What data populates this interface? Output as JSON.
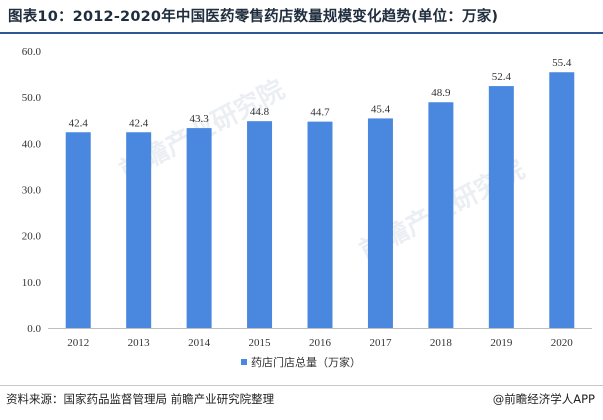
{
  "title": "图表10：2012-2020年中国医药零售药店数量规模变化趋势(单位：万家)",
  "watermark": "前瞻产业研究院",
  "source": "资料来源：国家药品监督管理局 前瞻产业研究院整理",
  "credit": "@前瞻经济学人APP",
  "chart_data": {
    "type": "bar",
    "categories": [
      "2012",
      "2013",
      "2014",
      "2015",
      "2016",
      "2017",
      "2018",
      "2019",
      "2020"
    ],
    "series": [
      {
        "name": "药店门店总量（万家）",
        "values": [
          42.4,
          42.4,
          43.3,
          44.8,
          44.7,
          45.4,
          48.9,
          52.4,
          55.4
        ],
        "color": "#4a87df"
      }
    ],
    "ylim": [
      0,
      60
    ],
    "yticks": [
      "0.0",
      "10.0",
      "20.0",
      "30.0",
      "40.0",
      "50.0",
      "60.0"
    ],
    "data_labels": [
      "42.4",
      "42.4",
      "43.3",
      "44.8",
      "44.7",
      "45.4",
      "48.9",
      "52.4",
      "55.4"
    ],
    "grid": false,
    "legend": "bottom-center"
  }
}
